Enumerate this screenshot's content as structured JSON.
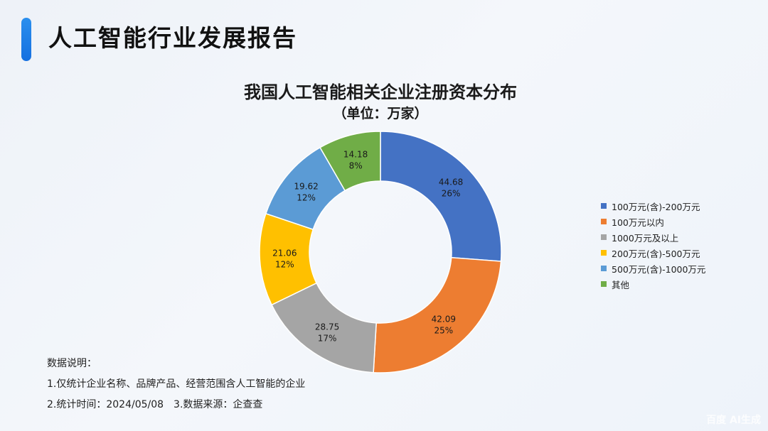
{
  "header": {
    "title": "人工智能行业发展报告",
    "accent_color": "#1a7ee8"
  },
  "chart": {
    "title": "我国人工智能相关企业注册资本分布",
    "subtitle": "（单位：万家）"
  },
  "chart_data": {
    "type": "pie",
    "variant": "donut",
    "title": "我国人工智能相关企业注册资本分布",
    "subtitle": "（单位：万家）",
    "unit": "万家",
    "legend_position": "right",
    "categories": [
      "100万元(含)-200万元",
      "100万元以内",
      "1000万元及以上",
      "200万元(含)-500万元",
      "500万元(含)-1000万元",
      "其他"
    ],
    "values": [
      44.68,
      42.09,
      28.75,
      21.06,
      19.62,
      14.18
    ],
    "percentages": [
      "26%",
      "25%",
      "17%",
      "12%",
      "12%",
      "8%"
    ],
    "colors": [
      "#4472c4",
      "#ed7d31",
      "#a5a5a5",
      "#ffc000",
      "#5b9bd5",
      "#70ad47"
    ]
  },
  "labels": [
    {
      "value": "44.68",
      "pct": "26%"
    },
    {
      "value": "42.09",
      "pct": "25%"
    },
    {
      "value": "28.75",
      "pct": "17%"
    },
    {
      "value": "21.06",
      "pct": "12%"
    },
    {
      "value": "19.62",
      "pct": "12%"
    },
    {
      "value": "14.18",
      "pct": "8%"
    }
  ],
  "legend": [
    {
      "label": "100万元(含)-200万元",
      "color": "#4472c4"
    },
    {
      "label": "100万元以内",
      "color": "#ed7d31"
    },
    {
      "label": "1000万元及以上",
      "color": "#a5a5a5"
    },
    {
      "label": "200万元(含)-500万元",
      "color": "#ffc000"
    },
    {
      "label": "500万元(含)-1000万元",
      "color": "#5b9bd5"
    },
    {
      "label": "其他",
      "color": "#70ad47"
    }
  ],
  "notes": {
    "heading": "数据说明：",
    "line1": "1.仅统计企业名称、品牌产品、经营范围含人工智能的企业",
    "line2": "2.统计时间：2024/05/08　3.数据来源：企查查"
  },
  "watermark": "百度 AI生成"
}
